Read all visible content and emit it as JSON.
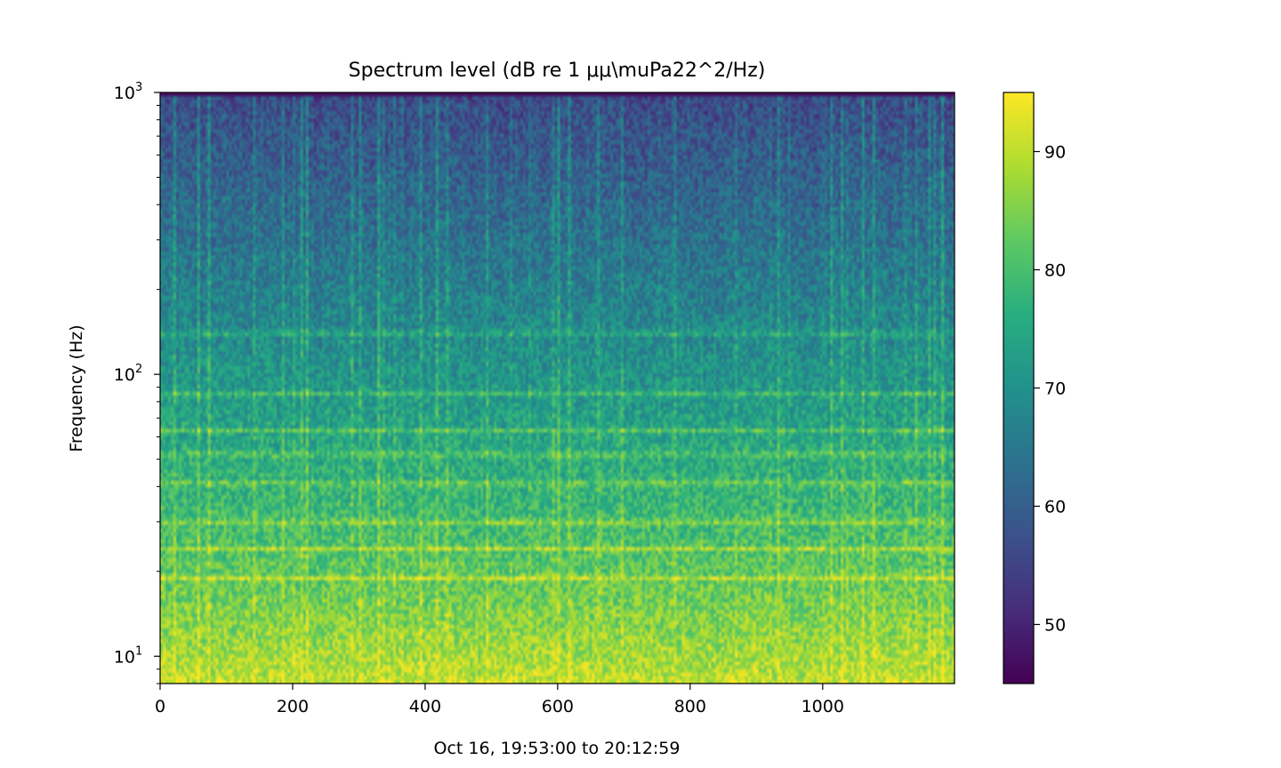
{
  "chart_data": {
    "type": "heatmap",
    "title": "Spectrum level (dB re 1 μμ\\muPa22^2/Hz)",
    "xlabel": "Oct 16, 19:53:00 to 20:12:59",
    "ylabel": "Frequency (Hz)",
    "xlim": [
      0,
      1199
    ],
    "ylim": [
      8,
      1000
    ],
    "yscale": "log",
    "x_ticks": [
      0,
      200,
      400,
      600,
      800,
      1000
    ],
    "x_tick_labels": [
      "0",
      "200",
      "400",
      "600",
      "800",
      "1000"
    ],
    "y_ticks": [
      10,
      100,
      1000
    ],
    "y_tick_labels": [
      {
        "base": "10",
        "exp": "1"
      },
      {
        "base": "10",
        "exp": "2"
      },
      {
        "base": "10",
        "exp": "3"
      }
    ],
    "colorbar": {
      "colormap": "viridis",
      "range": [
        45,
        95
      ],
      "ticks": [
        50,
        60,
        70,
        80,
        90
      ],
      "tick_labels": [
        "50",
        "60",
        "70",
        "80",
        "90"
      ]
    },
    "features": {
      "tonal_lines_hz": [
        19,
        24,
        30,
        41,
        52,
        63,
        85,
        140
      ],
      "low_band_level_db": 90,
      "high_band_level_db": 55
    }
  }
}
